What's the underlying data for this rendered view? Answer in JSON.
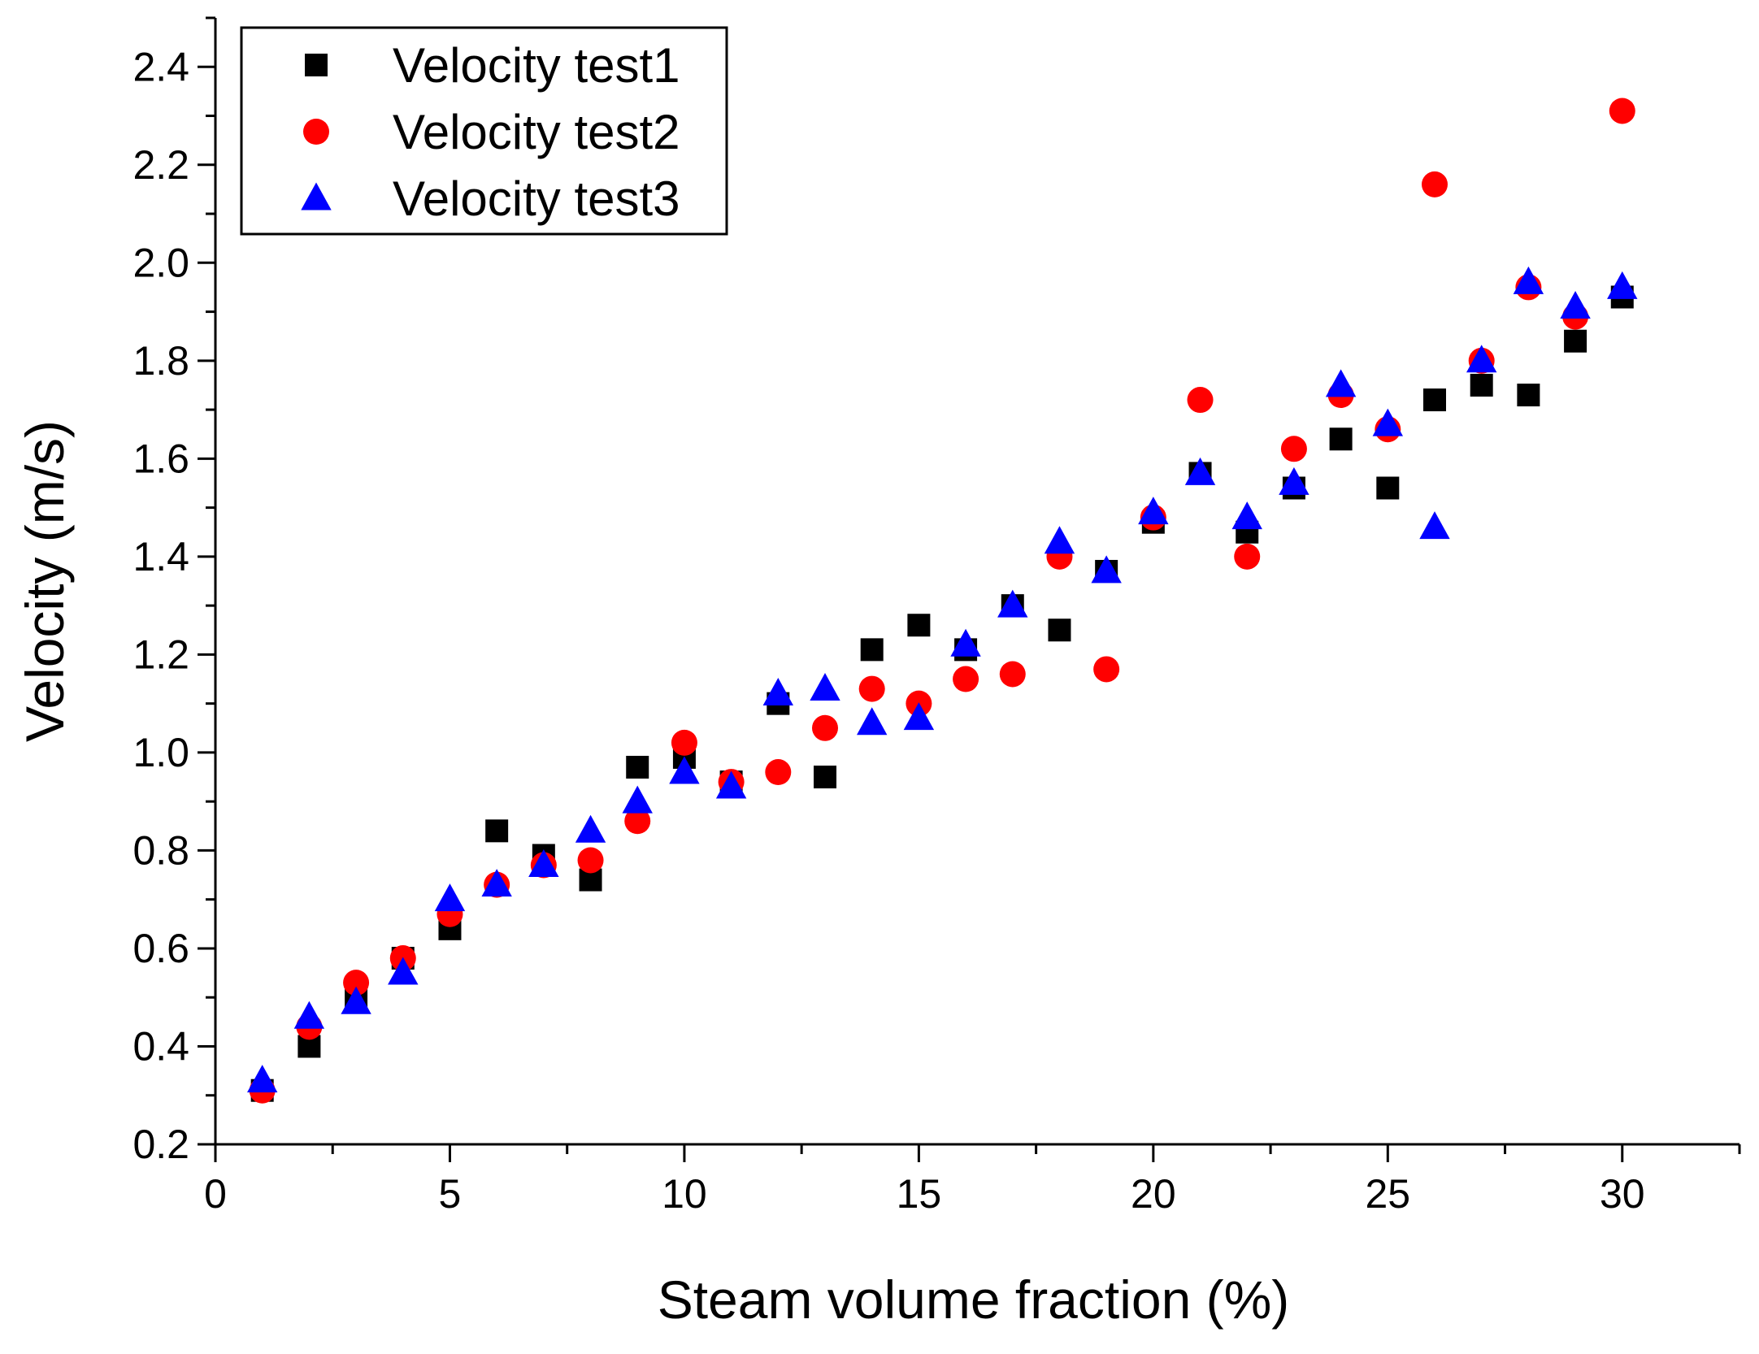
{
  "chart_data": {
    "type": "scatter",
    "title": "",
    "xlabel": "Steam volume fraction (%)",
    "ylabel": "Velocity (m/s)",
    "xlim": [
      0,
      32.5
    ],
    "ylim": [
      0.2,
      2.5
    ],
    "x_ticks": [
      "0",
      "5",
      "10",
      "15",
      "20",
      "25",
      "30"
    ],
    "y_ticks": [
      "0.2",
      "0.4",
      "0.6",
      "0.8",
      "1.0",
      "1.2",
      "1.4",
      "1.6",
      "1.8",
      "2.0",
      "2.2",
      "2.4"
    ],
    "grid": false,
    "legend_position": "top-left",
    "series": [
      {
        "name": "Velocity test1",
        "marker": "square",
        "color": "#000000",
        "x": [
          1,
          2,
          3,
          4,
          5,
          6,
          7,
          8,
          9,
          10,
          11,
          12,
          13,
          14,
          15,
          16,
          17,
          18,
          19,
          20,
          21,
          22,
          23,
          24,
          25,
          26,
          27,
          28,
          29,
          30
        ],
        "y": [
          0.31,
          0.4,
          0.5,
          0.58,
          0.64,
          0.84,
          0.79,
          0.74,
          0.97,
          0.99,
          0.94,
          1.1,
          0.95,
          1.21,
          1.26,
          1.21,
          1.3,
          1.25,
          1.37,
          1.47,
          1.57,
          1.45,
          1.54,
          1.64,
          1.54,
          1.72,
          1.75,
          1.73,
          1.84,
          1.93
        ]
      },
      {
        "name": "Velocity test2",
        "marker": "circle",
        "color": "#ff0000",
        "x": [
          1,
          2,
          3,
          4,
          5,
          6,
          7,
          8,
          9,
          10,
          11,
          12,
          13,
          14,
          15,
          16,
          17,
          18,
          19,
          20,
          21,
          22,
          23,
          24,
          25,
          26,
          27,
          28,
          29,
          30
        ],
        "y": [
          0.31,
          0.44,
          0.53,
          0.58,
          0.67,
          0.73,
          0.77,
          0.78,
          0.86,
          1.02,
          0.94,
          0.96,
          1.05,
          1.13,
          1.1,
          1.15,
          1.16,
          1.4,
          1.17,
          1.48,
          1.72,
          1.4,
          1.62,
          1.73,
          1.66,
          2.16,
          1.8,
          1.95,
          1.89,
          2.31
        ]
      },
      {
        "name": "Velocity test3",
        "marker": "triangle",
        "color": "#0000ff",
        "x": [
          1,
          2,
          3,
          4,
          5,
          6,
          7,
          8,
          9,
          10,
          11,
          12,
          13,
          14,
          15,
          16,
          17,
          18,
          19,
          20,
          21,
          22,
          23,
          24,
          25,
          26,
          27,
          28,
          29,
          30
        ],
        "y": [
          0.33,
          0.46,
          0.49,
          0.55,
          0.7,
          0.73,
          0.77,
          0.84,
          0.9,
          0.96,
          0.93,
          1.12,
          1.13,
          1.06,
          1.07,
          1.22,
          1.3,
          1.43,
          1.37,
          1.49,
          1.57,
          1.48,
          1.55,
          1.75,
          1.67,
          1.46,
          1.8,
          1.96,
          1.91,
          1.95
        ]
      }
    ]
  }
}
